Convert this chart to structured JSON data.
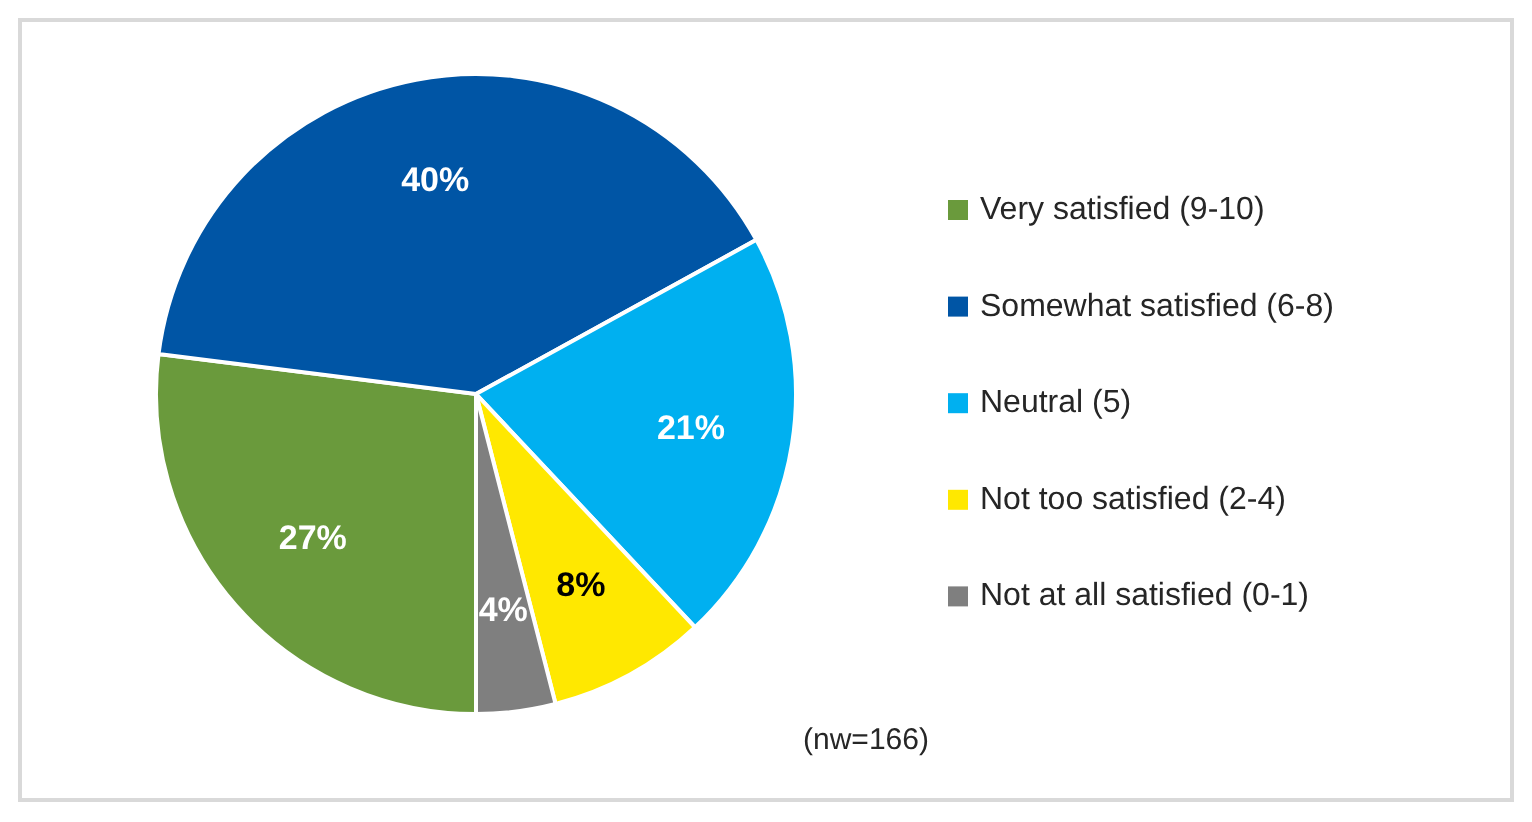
{
  "chart_data": {
    "type": "pie",
    "categories": [
      "Very satisfied (9-10)",
      "Somewhat satisfied (6-8)",
      "Neutral (5)",
      "Not too satisfied (2-4)",
      "Not at all satisfied (0-1)"
    ],
    "values": [
      27,
      40,
      21,
      8,
      4
    ],
    "colors": [
      "#6a9a3c",
      "#0055a5",
      "#00b0f0",
      "#ffe800",
      "#7f7f7f"
    ],
    "value_labels": [
      "27%",
      "40%",
      "21%",
      "8%",
      "4%"
    ],
    "legend": "right",
    "annotations": [
      "(nw=166)"
    ]
  }
}
